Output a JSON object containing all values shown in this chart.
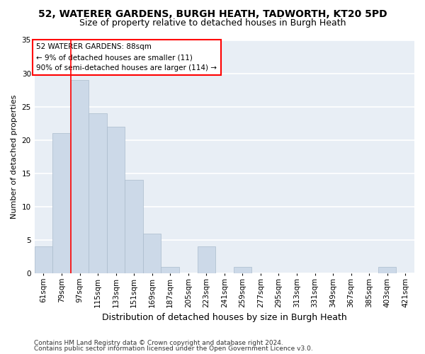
{
  "title1": "52, WATERER GARDENS, BURGH HEATH, TADWORTH, KT20 5PD",
  "title2": "Size of property relative to detached houses in Burgh Heath",
  "xlabel": "Distribution of detached houses by size in Burgh Heath",
  "ylabel": "Number of detached properties",
  "bins": [
    "61sqm",
    "79sqm",
    "97sqm",
    "115sqm",
    "133sqm",
    "151sqm",
    "169sqm",
    "187sqm",
    "205sqm",
    "223sqm",
    "241sqm",
    "259sqm",
    "277sqm",
    "295sqm",
    "313sqm",
    "331sqm",
    "349sqm",
    "367sqm",
    "385sqm",
    "403sqm",
    "421sqm"
  ],
  "values": [
    4,
    21,
    29,
    24,
    22,
    14,
    6,
    1,
    0,
    4,
    0,
    1,
    0,
    0,
    0,
    0,
    0,
    0,
    0,
    1,
    0
  ],
  "bar_color": "#ccd9e8",
  "bar_edge_color": "#aabbcc",
  "red_line_x": 1.5,
  "annotation_line1": "52 WATERER GARDENS: 88sqm",
  "annotation_line2": "← 9% of detached houses are smaller (11)",
  "annotation_line3": "90% of semi-detached houses are larger (114) →",
  "annotation_box_color": "white",
  "annotation_box_edge": "red",
  "footer1": "Contains HM Land Registry data © Crown copyright and database right 2024.",
  "footer2": "Contains public sector information licensed under the Open Government Licence v3.0.",
  "ylim": [
    0,
    35
  ],
  "yticks": [
    0,
    5,
    10,
    15,
    20,
    25,
    30,
    35
  ],
  "background_color": "#e8eef5",
  "grid_color": "white",
  "title1_fontsize": 10,
  "title2_fontsize": 9,
  "xlabel_fontsize": 9,
  "ylabel_fontsize": 8,
  "tick_fontsize": 7.5,
  "annotation_fontsize": 7.5,
  "footer_fontsize": 6.5
}
